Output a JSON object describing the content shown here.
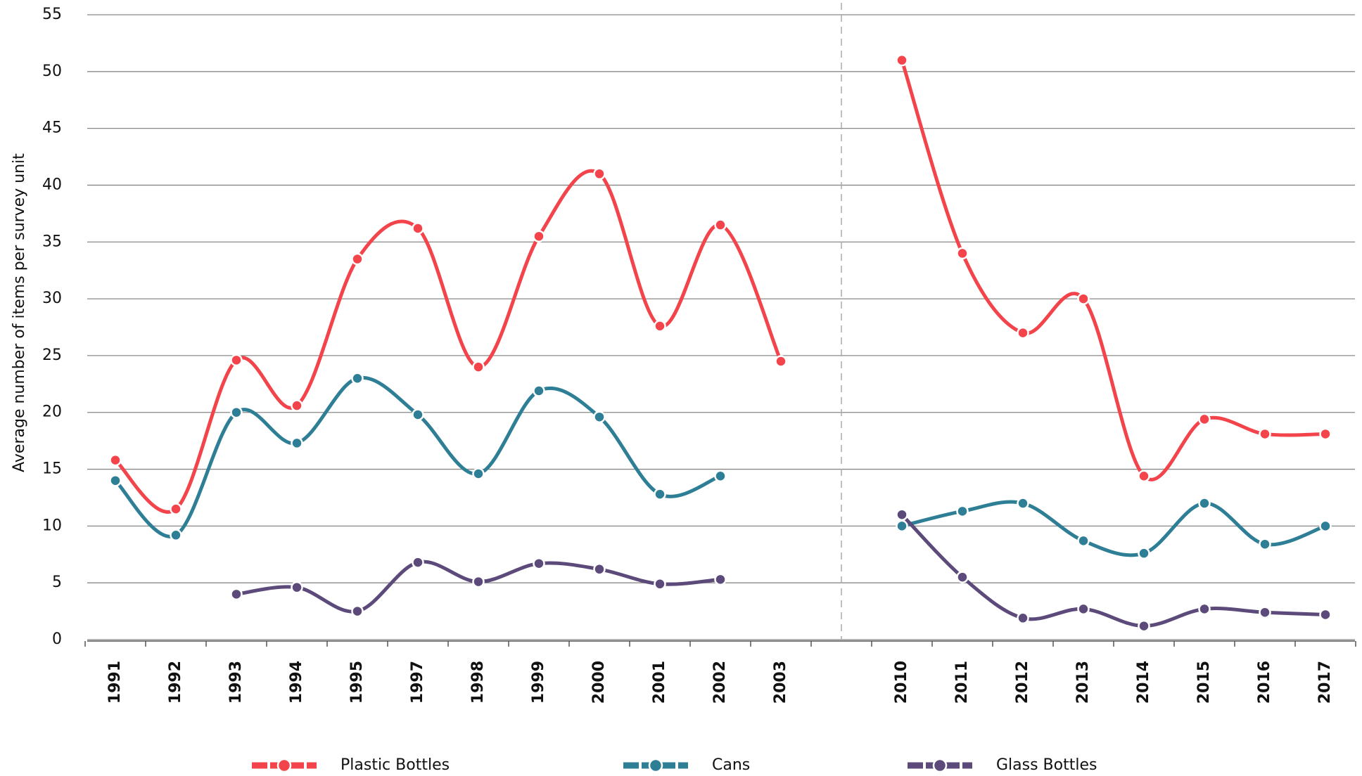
{
  "chart_data": {
    "type": "line",
    "y_label": "Average number of items per survey unit",
    "categories": [
      "1991",
      "1992",
      "1993",
      "1994",
      "1995",
      "1997",
      "1998",
      "1999",
      "2000",
      "2001",
      "2002",
      "2003",
      null,
      "2010",
      "2011",
      "2012",
      "2013",
      "2014",
      "2015",
      "2016",
      "2017"
    ],
    "series": [
      {
        "name": "Plastic Bottles",
        "color": "#f2444a",
        "values": [
          15.8,
          11.5,
          24.6,
          20.6,
          33.5,
          36.2,
          24,
          35.5,
          41,
          27.6,
          36.5,
          24.5,
          null,
          51,
          34,
          27,
          30,
          14.4,
          19.4,
          18.1,
          18.1
        ]
      },
      {
        "name": "Cans",
        "color": "#2e7f96",
        "values": [
          14,
          9.2,
          20,
          17.3,
          23,
          19.8,
          14.6,
          21.9,
          19.6,
          12.8,
          14.4,
          null,
          null,
          10,
          11.3,
          12,
          8.7,
          7.6,
          12,
          8.4,
          10
        ]
      },
      {
        "name": "Glass Bottles",
        "color": "#5c4a7a",
        "values": [
          null,
          null,
          4,
          4.6,
          2.5,
          6.8,
          5.1,
          6.7,
          6.2,
          4.9,
          5.3,
          null,
          null,
          11,
          5.5,
          1.9,
          2.7,
          1.2,
          2.7,
          2.4,
          2.2
        ]
      }
    ],
    "ylim": [
      0,
      55
    ],
    "yticks": [
      0,
      5,
      10,
      15,
      20,
      25,
      30,
      35,
      40,
      45,
      50,
      55
    ],
    "grid": true
  }
}
